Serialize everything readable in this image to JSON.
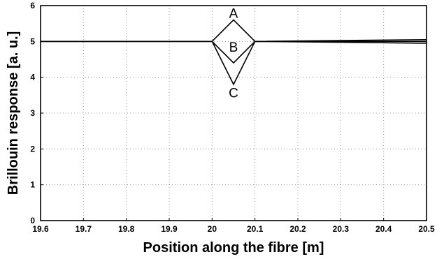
{
  "chart_data": {
    "type": "line",
    "title": "",
    "xlabel": "Position along the fibre [m]",
    "ylabel": "Brillouin response [a. u.]",
    "xlim": [
      19.6,
      20.5
    ],
    "ylim": [
      0,
      6
    ],
    "xticks": [
      19.6,
      19.7,
      19.8,
      19.9,
      20,
      20.1,
      20.2,
      20.3,
      20.4,
      20.5
    ],
    "xtick_labels": [
      "19.6",
      "19.7",
      "19.8",
      "19.9",
      "20",
      "20.1",
      "20.2",
      "20.3",
      "20.4",
      "20.5"
    ],
    "yticks": [
      0,
      1,
      2,
      3,
      4,
      5,
      6
    ],
    "ytick_labels": [
      "0",
      "1",
      "2",
      "3",
      "4",
      "5",
      "6"
    ],
    "grid": true,
    "series": [
      {
        "label": "A",
        "x": [
          19.6,
          20.0,
          20.05,
          20.1,
          20.5
        ],
        "y": [
          5.0,
          5.0,
          5.6,
          5.0,
          5.05
        ],
        "color": "#000000"
      },
      {
        "label": "B",
        "x": [
          19.6,
          20.0,
          20.05,
          20.1,
          20.5
        ],
        "y": [
          5.0,
          5.0,
          4.4,
          5.0,
          5.0
        ],
        "color": "#000000"
      },
      {
        "label": "C",
        "x": [
          19.6,
          20.0,
          20.05,
          20.1,
          20.5
        ],
        "y": [
          5.0,
          5.0,
          3.8,
          5.0,
          4.95
        ],
        "color": "#000000"
      }
    ],
    "annotations": [
      {
        "text": "A",
        "x": 20.05,
        "y": 5.8
      },
      {
        "text": "B",
        "x": 20.05,
        "y": 4.85
      },
      {
        "text": "C",
        "x": 20.05,
        "y": 3.57
      }
    ]
  }
}
